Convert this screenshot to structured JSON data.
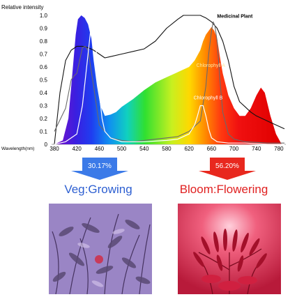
{
  "chart_data": {
    "type": "area",
    "ylabel": "Relative intensity",
    "xlabel": "Wavelength(nm)",
    "x_ticks": [
      380,
      420,
      460,
      500,
      540,
      580,
      620,
      660,
      700,
      740,
      780
    ],
    "y_ticks": [
      "0",
      "0.1",
      "0.2",
      "0.3",
      "0.4",
      "0.5",
      "0.6",
      "0.7",
      "0.8",
      "0.9",
      "1.0"
    ],
    "xlim": [
      380,
      790
    ],
    "ylim": [
      0,
      1.0
    ],
    "grid": false,
    "series": [
      {
        "name": "",
        "style": "rainbow-fill",
        "x": [
          380,
          395,
          405,
          412,
          418,
          422,
          428,
          434,
          440,
          446,
          450,
          456,
          462,
          470,
          480,
          490,
          500,
          520,
          540,
          560,
          580,
          600,
          620,
          630,
          640,
          645,
          650,
          655,
          660,
          665,
          670,
          675,
          680,
          690,
          700,
          710,
          720,
          730,
          740,
          748,
          755,
          765,
          775,
          785
        ],
        "y": [
          0.0,
          0.03,
          0.2,
          0.55,
          0.85,
          0.97,
          1.0,
          0.98,
          0.93,
          0.82,
          0.65,
          0.45,
          0.3,
          0.22,
          0.23,
          0.25,
          0.29,
          0.35,
          0.42,
          0.48,
          0.52,
          0.56,
          0.6,
          0.65,
          0.73,
          0.8,
          0.85,
          0.88,
          0.91,
          0.88,
          0.82,
          0.68,
          0.55,
          0.38,
          0.28,
          0.22,
          0.22,
          0.28,
          0.38,
          0.44,
          0.4,
          0.22,
          0.08,
          0.0
        ]
      },
      {
        "name": "Medicinal Plant",
        "style": "black-line",
        "x": [
          380,
          390,
          400,
          410,
          420,
          430,
          440,
          450,
          460,
          470,
          480,
          500,
          520,
          540,
          560,
          580,
          600,
          610,
          620,
          640,
          650,
          660,
          670,
          680,
          690,
          700,
          710,
          720,
          730,
          740,
          760,
          780,
          790
        ],
        "y": [
          0.0,
          0.4,
          0.65,
          0.73,
          0.76,
          0.76,
          0.75,
          0.73,
          0.7,
          0.67,
          0.68,
          0.7,
          0.72,
          0.74,
          0.8,
          0.9,
          0.97,
          1.0,
          1.0,
          1.0,
          0.98,
          0.95,
          0.9,
          0.8,
          0.65,
          0.45,
          0.33,
          0.29,
          0.25,
          0.22,
          0.18,
          0.14,
          0.12
        ]
      },
      {
        "name": "Chlorophyll A",
        "style": "gray-line",
        "x": [
          380,
          400,
          410,
          415,
          420,
          425,
          430,
          435,
          440,
          450,
          460,
          480,
          500,
          520,
          540,
          560,
          580,
          600,
          620,
          630,
          640,
          650,
          655,
          660,
          663,
          666,
          670,
          675,
          680,
          690,
          700,
          720,
          760,
          790
        ],
        "y": [
          0.1,
          0.28,
          0.5,
          0.53,
          0.55,
          0.65,
          0.75,
          0.76,
          0.73,
          0.45,
          0.15,
          0.05,
          0.03,
          0.02,
          0.03,
          0.04,
          0.05,
          0.06,
          0.1,
          0.14,
          0.18,
          0.45,
          0.7,
          0.88,
          0.95,
          0.92,
          0.8,
          0.5,
          0.25,
          0.08,
          0.04,
          0.02,
          0.01,
          0.01
        ]
      },
      {
        "name": "Chlorophyll B",
        "style": "white-line",
        "x": [
          380,
          400,
          420,
          430,
          440,
          445,
          450,
          455,
          460,
          465,
          470,
          480,
          500,
          540,
          580,
          600,
          620,
          630,
          635,
          640,
          645,
          650,
          655,
          660,
          670,
          690,
          720,
          760,
          790
        ],
        "y": [
          0.0,
          0.02,
          0.08,
          0.3,
          0.7,
          0.9,
          0.95,
          0.7,
          0.4,
          0.2,
          0.1,
          0.05,
          0.02,
          0.02,
          0.03,
          0.04,
          0.08,
          0.15,
          0.22,
          0.3,
          0.3,
          0.22,
          0.12,
          0.05,
          0.02,
          0.01,
          0.01,
          0.0,
          0.0
        ]
      }
    ],
    "annotations": [
      {
        "text": "Medicinal Plant",
        "x": 670,
        "y": 0.98
      },
      {
        "text": "Chlorophyll A",
        "x": 633,
        "y": 0.6
      },
      {
        "text": "Chlorophyll B",
        "x": 628,
        "y": 0.35
      }
    ]
  },
  "arrows": {
    "veg": {
      "label": "30.17%",
      "color": "#3b7ae8"
    },
    "bloom": {
      "label": "56.20%",
      "color": "#e8281e"
    }
  },
  "captions": {
    "veg": "Veg:Growing",
    "bloom": "Bloom:Flowering"
  },
  "photos": {
    "veg": {
      "tint": "#9a7cc8"
    },
    "bloom": {
      "tint": "#e8455f"
    }
  }
}
